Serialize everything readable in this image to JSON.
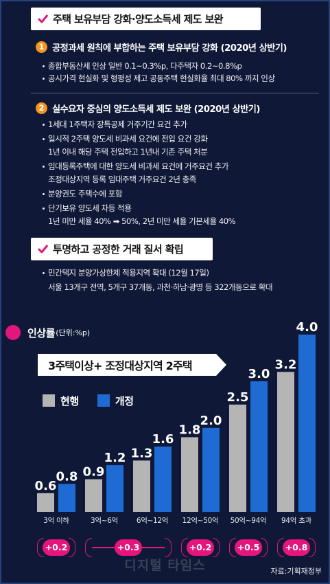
{
  "colors": {
    "background": "#0f1836",
    "accent": "#e4157b",
    "number_badge": "#f5941f",
    "current": "#b5b5b5",
    "revised": "#1f6bd4"
  },
  "banner_1": {
    "icon": "check-icon",
    "title": "주택 보유부담 강화·양도소득세 제도 보완"
  },
  "item_1": {
    "number": "1",
    "heading": "공정과세 원칙에 부합하는 주택 보유부담 강화 (2020년 상반기)",
    "bullets": [
      "종합부동산세 인상 일반 0.1~0.3%p, 다주택자 0.2~0.8%p",
      "공시가격 현실화 및 형평성 제고 공동주택 현실화율 최대 80% 까지 인상"
    ]
  },
  "item_2": {
    "number": "2",
    "heading": "실수요자 중심의 양도소득세 제도 보완 (2020년 상반기)",
    "bullets": [
      {
        "text": "1세대 1주택자 장특공제 거주기간 요건 추가"
      },
      {
        "text": "일시적 2주택 양도세 비과세 요건에 전입 요건 강화",
        "detail": "1년 이내 해당 주택 전입하고 1년내 기존 주택 처분"
      },
      {
        "text": "임대등록주택에 대한 양도세 비과세 요건에 거주요건 추가",
        "detail": "조정대상지역 등록 임대주택 거주요건 2년 충족"
      },
      {
        "text": "분양권도 주택수에 포함"
      },
      {
        "text": "단기보유 양도세 차등 적용",
        "detail": "1년 미만 세율 40% ➡ 50%, 2년 미만 세율 기본세율 40%"
      }
    ]
  },
  "banner_2": {
    "icon": "check-icon",
    "title": "투명하고 공정한 거래 질서 확립"
  },
  "item_3": {
    "bullets": [
      {
        "text": "민간택지 분양가상한제 적용지역 확대 (12월 17일)",
        "detail": "서울 13개구 전역, 5개구 37개동, 과천·하남·광명 등 322개동으로 확대"
      }
    ]
  },
  "chart_data": {
    "type": "bar",
    "title": "3주택이상+ 조정대상지역 2주택",
    "ylabel": "인상률",
    "unit_note": "(단위:%p)",
    "categories": [
      "3억 이하",
      "3억~6억",
      "6억~12억",
      "12억~50억",
      "50억~94억",
      "94억 초과"
    ],
    "series": [
      {
        "name": "현행",
        "values": [
          0.6,
          0.9,
          1.3,
          1.8,
          2.5,
          3.2
        ],
        "color": "#b5b5b5"
      },
      {
        "name": "개정",
        "values": [
          0.8,
          1.2,
          1.6,
          2.0,
          3.0,
          4.0
        ],
        "color": "#1f6bd4"
      }
    ],
    "increases": [
      {
        "label": "+0.2",
        "from": 0,
        "to": 0
      },
      {
        "label": "+0.3",
        "from": 1,
        "to": 2
      },
      {
        "label": "+0.2",
        "from": 3,
        "to": 3
      },
      {
        "label": "+0.5",
        "from": 4,
        "to": 4
      },
      {
        "label": "+0.8",
        "from": 5,
        "to": 5
      }
    ],
    "ylim": [
      0.2,
      4.0
    ],
    "grid": false,
    "legend": "top-left"
  },
  "watermark": "디지털 타임스",
  "source": "자료:기획재정부"
}
